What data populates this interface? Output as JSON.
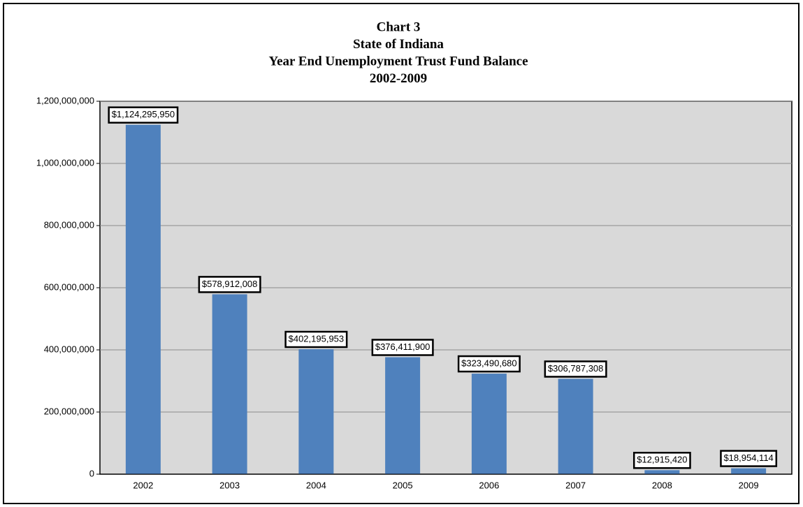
{
  "chart_data": {
    "type": "bar",
    "title": [
      "Chart 3",
      "State of Indiana",
      "Year End Unemployment Trust Fund Balance",
      "2002-2009"
    ],
    "categories": [
      "2002",
      "2003",
      "2004",
      "2005",
      "2006",
      "2007",
      "2008",
      "2009"
    ],
    "values": [
      1124295950,
      578912008,
      402195953,
      376411900,
      323490680,
      306787308,
      12915420,
      18954114
    ],
    "value_labels": [
      "$1,124,295,950",
      "$578,912,008",
      "$402,195,953",
      "$376,411,900",
      "$323,490,680",
      "$306,787,308",
      "$12,915,420",
      "$18,954,114"
    ],
    "color": "#4f81bd",
    "ylim": [
      0,
      1200000000
    ],
    "yticks": [
      0,
      {
        "value": 200000000,
        "label": "200,000,000"
      },
      {
        "value": 400000000,
        "label": "400,000,000"
      },
      {
        "value": 600000000,
        "label": "600,000,000"
      },
      {
        "value": 800000000,
        "label": "800,000,000"
      },
      {
        "value": 1000000000,
        "label": "1,000,000,000"
      },
      {
        "value": 1200000000,
        "label": "1,200,000,000"
      }
    ],
    "grid": true
  }
}
